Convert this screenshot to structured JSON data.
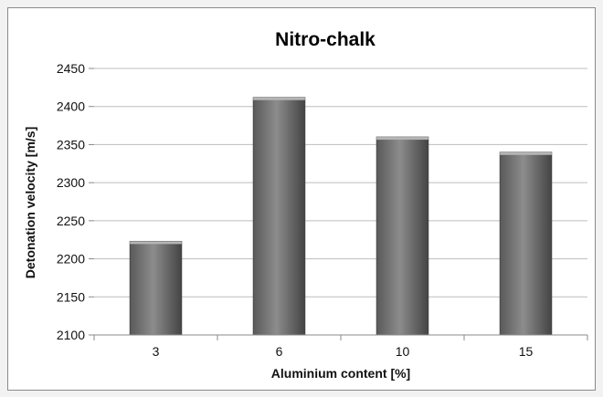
{
  "chart_data": {
    "type": "bar",
    "title": "Nitro-chalk",
    "xlabel": "Aluminium content [%]",
    "ylabel": "Detonation velocity [m/s]",
    "categories": [
      "3",
      "6",
      "10",
      "15"
    ],
    "values": [
      2223,
      2412,
      2360,
      2340
    ],
    "ylim": [
      2100,
      2450
    ],
    "yticks": [
      "2100",
      "2150",
      "2200",
      "2250",
      "2300",
      "2350",
      "2400",
      "2450"
    ],
    "grid": true,
    "legend": "none",
    "colors": {
      "bar_dark": "#444444",
      "bar_mid": "#8c8c8c",
      "bar_light": "#5a5a5a",
      "grid": "#bdbdbd",
      "axis": "#888888"
    }
  }
}
